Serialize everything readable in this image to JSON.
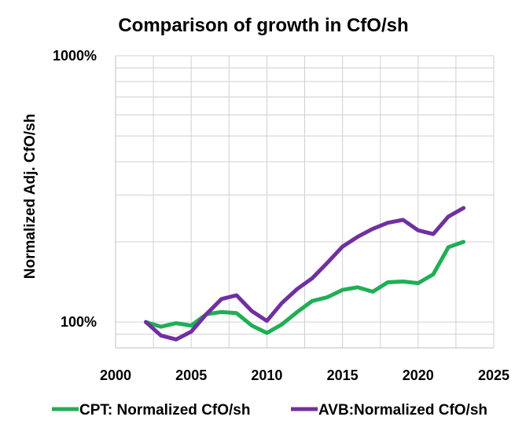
{
  "chart_data": {
    "type": "line",
    "title": "Comparison of growth in CfO/sh",
    "xlabel": "",
    "ylabel": "Normalized Adj. CfO/sh",
    "x_ticks": [
      "2000",
      "2005",
      "2010",
      "2015",
      "2020",
      "2025"
    ],
    "y_ticks": [
      "100%",
      "1000%"
    ],
    "xlim": [
      2000,
      2025
    ],
    "ylim_percent": [
      80,
      1000
    ],
    "y_scale": "log",
    "grid": true,
    "legend_position": "bottom",
    "x": [
      2002,
      2003,
      2004,
      2005,
      2006,
      2007,
      2008,
      2009,
      2010,
      2011,
      2012,
      2013,
      2014,
      2015,
      2016,
      2017,
      2018,
      2019,
      2020,
      2021,
      2022,
      2023
    ],
    "series": [
      {
        "name": "CPT: Normalized CfO/sh",
        "color": "#1fae55",
        "values": [
          100,
          96,
          99,
          97,
          107,
          109,
          108,
          97,
          91,
          98,
          109,
          120,
          124,
          132,
          135,
          130,
          141,
          142,
          140,
          151,
          191,
          200
        ]
      },
      {
        "name": "AVB:Normalized CfO/sh",
        "color": "#7030a0",
        "values": [
          100,
          89,
          86,
          92,
          107,
          122,
          126,
          110,
          101,
          118,
          133,
          146,
          167,
          192,
          209,
          224,
          236,
          242,
          221,
          214,
          249,
          268
        ]
      }
    ]
  }
}
